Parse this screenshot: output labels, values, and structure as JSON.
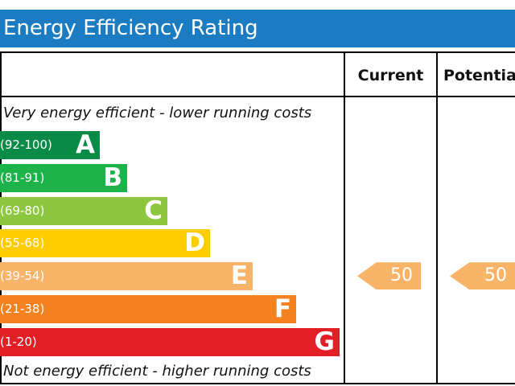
{
  "title": "Energy Efficiency Rating",
  "columns": {
    "current": "Current",
    "potential": "Potentia"
  },
  "top_note": "Very energy efficient - lower running costs",
  "bottom_note": "Not energy efficient - higher running costs",
  "colors": {
    "header": "#1c7cc2",
    "A": "#0a8a47",
    "B": "#1db34a",
    "C": "#8dc63f",
    "D": "#ffcc00",
    "E": "#f8b469",
    "F": "#f58220",
    "G": "#e21e26",
    "arrow": "#f8b469"
  },
  "chart_data": {
    "type": "bar",
    "title": "Energy Efficiency Rating",
    "categories": [
      "A",
      "B",
      "C",
      "D",
      "E",
      "F",
      "G"
    ],
    "ranges": [
      "(92-100)",
      "(81-91)",
      "(69-80)",
      "(55-68)",
      "(39-54)",
      "(21-38)",
      "(1-20)"
    ],
    "current": {
      "value": "50",
      "band": "E"
    },
    "potential": {
      "value": "50",
      "band": "E"
    }
  }
}
